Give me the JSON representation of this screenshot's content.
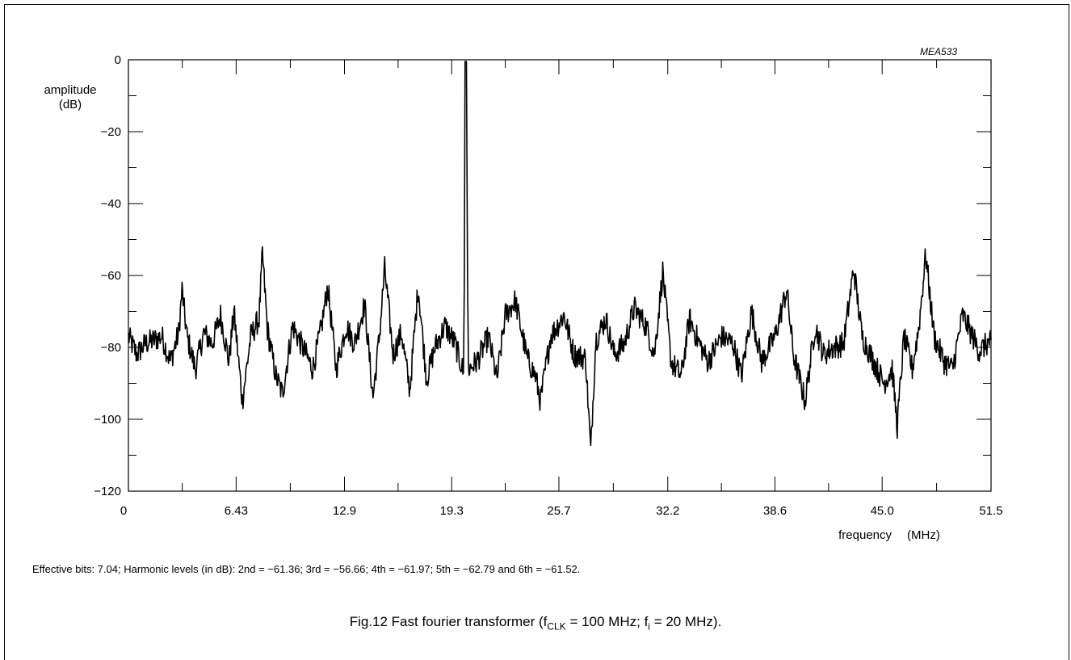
{
  "chart_data": {
    "type": "line",
    "code": "MEA533",
    "ylabel": [
      "amplitude",
      "(dB)"
    ],
    "xlabel": "frequency",
    "xunit": "(MHz)",
    "xlim": [
      0,
      51.5
    ],
    "ylim": [
      -120,
      0
    ],
    "x_ticks": [
      "0",
      "6.43",
      "12.9",
      "19.3",
      "25.7",
      "32.2",
      "38.6",
      "45.0",
      "51.5"
    ],
    "x_tick_values": [
      0,
      6.43,
      12.9,
      19.3,
      25.7,
      32.2,
      38.6,
      45.0,
      51.5
    ],
    "y_ticks": [
      "0",
      "−20",
      "−40",
      "−60",
      "−80",
      "−100",
      "−120"
    ],
    "y_tick_values": [
      0,
      -20,
      -40,
      -60,
      -80,
      -100,
      -120
    ],
    "series": [
      {
        "noise_floor_db": -78,
        "points": [
          [
            0,
            -77
          ],
          [
            0.5,
            -82
          ],
          [
            1.0,
            -79
          ],
          [
            1.5,
            -78
          ],
          [
            2.0,
            -77
          ],
          [
            2.5,
            -84
          ],
          [
            3.0,
            -76
          ],
          [
            3.2,
            -64
          ],
          [
            3.5,
            -77
          ],
          [
            4.0,
            -86
          ],
          [
            4.5,
            -76
          ],
          [
            5.0,
            -79
          ],
          [
            5.5,
            -71
          ],
          [
            6.0,
            -84
          ],
          [
            6.3,
            -70
          ],
          [
            6.8,
            -95
          ],
          [
            7.3,
            -77
          ],
          [
            7.8,
            -72
          ],
          [
            8.0,
            -54
          ],
          [
            8.3,
            -75
          ],
          [
            8.8,
            -88
          ],
          [
            9.2,
            -93
          ],
          [
            9.8,
            -74
          ],
          [
            10.3,
            -79
          ],
          [
            11.0,
            -86
          ],
          [
            11.5,
            -75
          ],
          [
            11.9,
            -63
          ],
          [
            12.4,
            -86
          ],
          [
            13.0,
            -74
          ],
          [
            13.5,
            -79
          ],
          [
            14.1,
            -68
          ],
          [
            14.6,
            -94
          ],
          [
            15.0,
            -76
          ],
          [
            15.3,
            -58
          ],
          [
            15.8,
            -82
          ],
          [
            16.3,
            -76
          ],
          [
            16.8,
            -92
          ],
          [
            17.3,
            -63
          ],
          [
            17.8,
            -89
          ],
          [
            18.3,
            -80
          ],
          [
            18.9,
            -74
          ],
          [
            19.5,
            -79
          ],
          [
            20.0,
            -87
          ],
          [
            20.05,
            -64
          ],
          [
            20.1,
            -0.5
          ],
          [
            20.18,
            -0.5
          ],
          [
            20.25,
            -62
          ],
          [
            20.3,
            -86
          ],
          [
            20.8,
            -84
          ],
          [
            21.5,
            -77
          ],
          [
            22.0,
            -89
          ],
          [
            22.5,
            -71
          ],
          [
            23.1,
            -67
          ],
          [
            23.8,
            -83
          ],
          [
            24.3,
            -88
          ],
          [
            24.6,
            -95
          ],
          [
            25.2,
            -77
          ],
          [
            26.0,
            -71
          ],
          [
            26.6,
            -82
          ],
          [
            27.3,
            -83
          ],
          [
            27.6,
            -109
          ],
          [
            27.9,
            -78
          ],
          [
            28.5,
            -72
          ],
          [
            29.0,
            -82
          ],
          [
            29.6,
            -79
          ],
          [
            30.2,
            -69
          ],
          [
            30.9,
            -74
          ],
          [
            31.4,
            -82
          ],
          [
            31.9,
            -59
          ],
          [
            32.4,
            -84
          ],
          [
            33.0,
            -88
          ],
          [
            33.5,
            -72
          ],
          [
            34.0,
            -78
          ],
          [
            34.6,
            -84
          ],
          [
            35.4,
            -77
          ],
          [
            36.1,
            -79
          ],
          [
            36.6,
            -88
          ],
          [
            37.2,
            -70
          ],
          [
            37.8,
            -84
          ],
          [
            38.6,
            -77
          ],
          [
            39.3,
            -64
          ],
          [
            39.7,
            -82
          ],
          [
            40.4,
            -95
          ],
          [
            41.0,
            -74
          ],
          [
            41.5,
            -82
          ],
          [
            42.1,
            -80
          ],
          [
            42.7,
            -79
          ],
          [
            43.3,
            -58
          ],
          [
            43.8,
            -77
          ],
          [
            44.3,
            -82
          ],
          [
            45.1,
            -90
          ],
          [
            45.6,
            -86
          ],
          [
            45.9,
            -102
          ],
          [
            46.3,
            -77
          ],
          [
            46.8,
            -86
          ],
          [
            47.2,
            -74
          ],
          [
            47.6,
            -54
          ],
          [
            48.1,
            -77
          ],
          [
            48.7,
            -84
          ],
          [
            49.2,
            -86
          ],
          [
            49.8,
            -71
          ],
          [
            50.3,
            -76
          ],
          [
            50.8,
            -81
          ],
          [
            51.5,
            -78
          ]
        ]
      }
    ],
    "grid": false
  },
  "note": "Effective bits: 7.04; Harmonic levels (in dB): 2nd = −61.36; 3rd = −56.66; 4th = −61.97; 5th = −62.79 and 6th = −61.52.",
  "caption": {
    "prefix": "Fig.12  Fast fourier transformer (f",
    "sub1": "CLK",
    "mid": " = 100 MHz; f",
    "sub2": "i",
    "suffix": " = 20 MHz)."
  }
}
